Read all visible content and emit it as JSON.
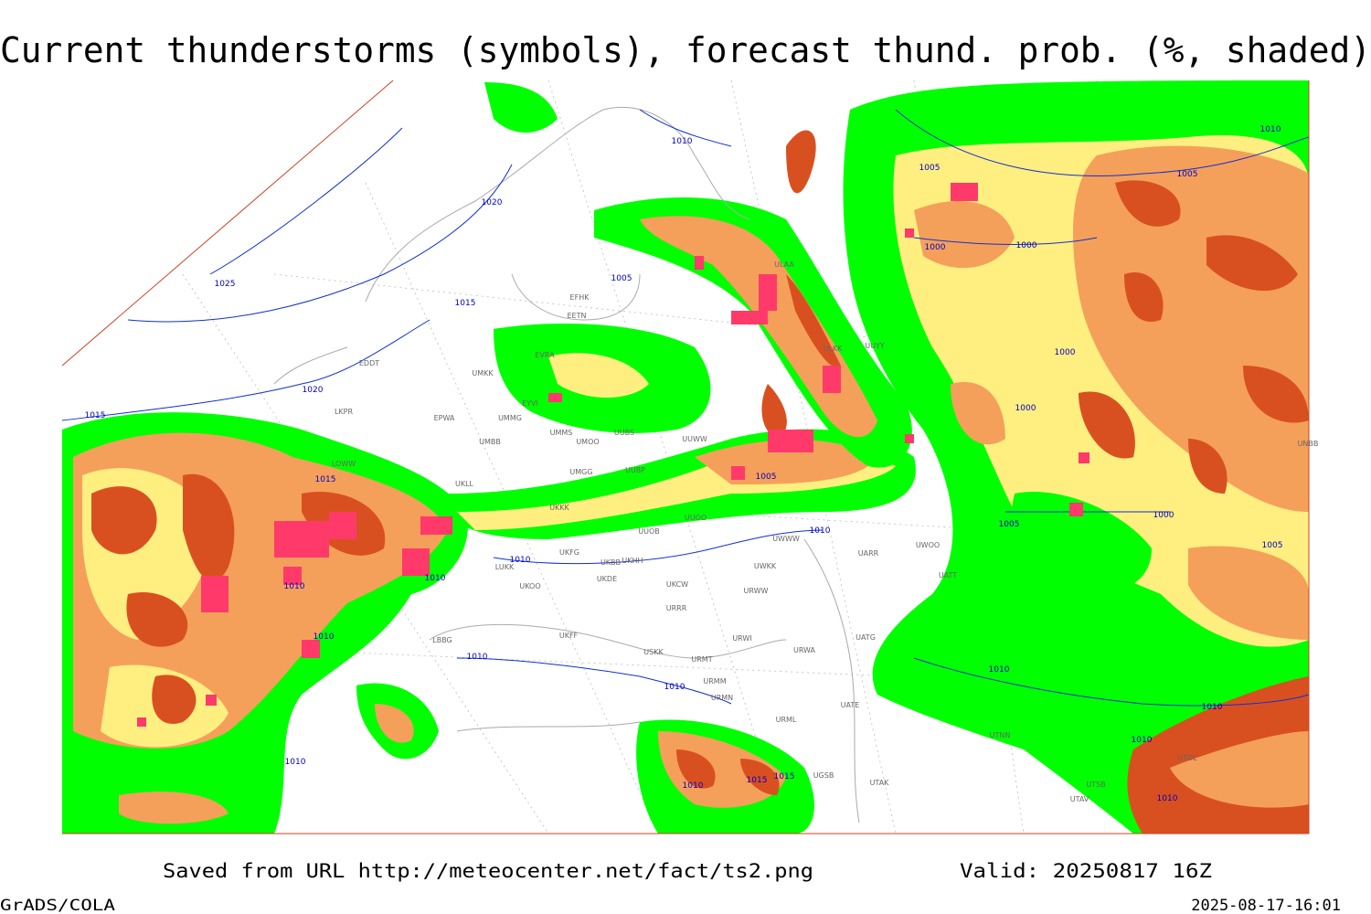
{
  "header": {
    "title": "Current thunderstorms (symbols), forecast thund. prob. (%, shaded)"
  },
  "footer": {
    "saved": "Saved from URL http://meteocenter.net/fact/ts2.png",
    "valid": "Valid: 20250817 16Z",
    "software": "GrADS/COLA",
    "timestamp": "2025-08-17-16:01"
  },
  "map": {
    "isobar_labels": [
      1010,
      1020,
      1025,
      1015,
      1020,
      1015,
      1015,
      1010,
      1010,
      1010,
      1010,
      1010,
      1010,
      1010,
      1005,
      1005,
      1010,
      1005,
      1000,
      1000,
      1005,
      1010,
      1000,
      1000,
      1000,
      1005,
      1005,
      1010,
      1010,
      1010,
      1010,
      1015,
      1015,
      1010
    ],
    "stations": [
      "EDDT",
      "LKPR",
      "EPWA",
      "UMMG",
      "UMBB",
      "UMKK",
      "EFHK",
      "EETN",
      "EVRA",
      "EYVI",
      "UMMS",
      "UMOO",
      "UUBS",
      "UUWW",
      "UMGG",
      "UUBP",
      "UKLL",
      "UKKK",
      "UUOO",
      "UUOB",
      "UKFG",
      "UKBB",
      "UKHH",
      "LUKK",
      "UKOO",
      "UKDE",
      "UKCW",
      "URRR",
      "URWI",
      "URMT",
      "URMM",
      "URMN",
      "URML",
      "UKFF",
      "USKK",
      "LBBG",
      "LOWW",
      "ULAA",
      "ULKK",
      "UUYY",
      "UWWW",
      "URWW",
      "URWA",
      "UATG",
      "UATE",
      "UWOO",
      "UATT",
      "UWKK",
      "UARR",
      "UTAK",
      "UGSB",
      "UTNN",
      "UTSB",
      "UTAV",
      "UTDL",
      "UNBB"
    ]
  }
}
